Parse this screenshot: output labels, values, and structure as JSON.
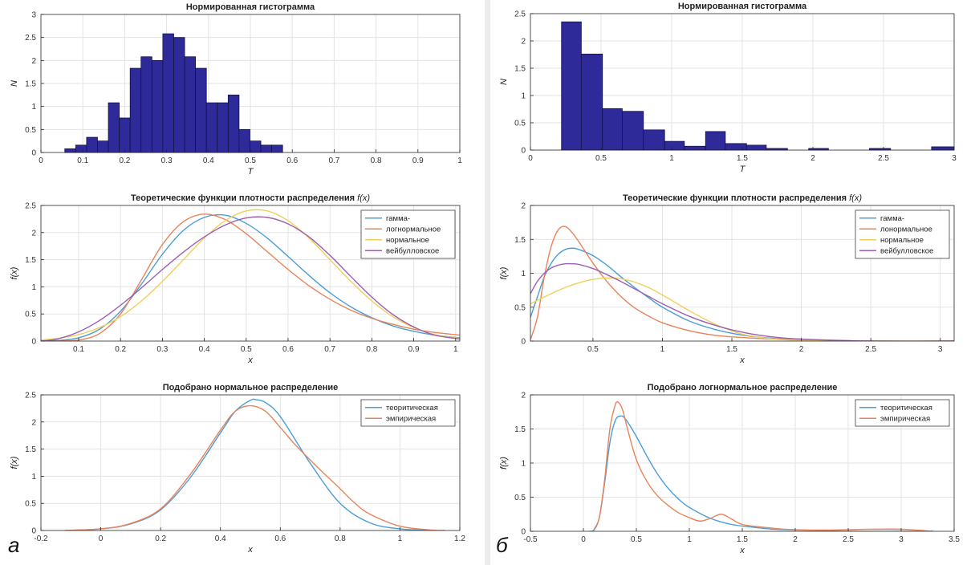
{
  "panel_labels": [
    "а",
    "б"
  ],
  "colors": {
    "bar_fill": "#2e2a9a",
    "gamma": "#4a9ed8",
    "lognormal": "#e8835a",
    "normal": "#f0cf5a",
    "weibull": "#9b5fb3",
    "theoretical": "#4a9ed8",
    "empirical": "#e8835a"
  },
  "chart_data": [
    {
      "type": "bar",
      "panel": "а",
      "title": "Нормированная гистограмма",
      "xlabel": "T",
      "ylabel": "N",
      "xlim": [
        0,
        1
      ],
      "ylim": [
        0,
        3
      ],
      "xticks": [
        0,
        0.1,
        0.2,
        0.3,
        0.4,
        0.5,
        0.6,
        0.7,
        0.8,
        0.9,
        1
      ],
      "yticks": [
        0,
        0.5,
        1,
        1.5,
        2,
        2.5,
        3
      ],
      "grid": true,
      "bin_edges": [
        0.057,
        0.082,
        0.109,
        0.135,
        0.161,
        0.187,
        0.213,
        0.239,
        0.266,
        0.292,
        0.318,
        0.345,
        0.371,
        0.397,
        0.423,
        0.449,
        0.475,
        0.502,
        0.528,
        0.554,
        0.58,
        0.606,
        0.632,
        0.658,
        0.685,
        0.711,
        0.737,
        0.763,
        0.789,
        0.816,
        0.842,
        0.868,
        0.894,
        0.92,
        0.946,
        0.972
      ],
      "bin_edges_note": "",
      "bars": [
        {
          "x0": 0.057,
          "x1": 0.083,
          "value": 0.08
        },
        {
          "x0": 0.083,
          "x1": 0.109,
          "value": 0.16
        },
        {
          "x0": 0.109,
          "x1": 0.135,
          "value": 0.33
        },
        {
          "x0": 0.135,
          "x1": 0.161,
          "value": 0.25
        },
        {
          "x0": 0.161,
          "x1": 0.187,
          "value": 1.08
        },
        {
          "x0": 0.187,
          "x1": 0.213,
          "value": 0.75
        },
        {
          "x0": 0.213,
          "x1": 0.239,
          "value": 1.83
        },
        {
          "x0": 0.239,
          "x1": 0.265,
          "value": 2.08
        },
        {
          "x0": 0.265,
          "x1": 0.291,
          "value": 2.0
        },
        {
          "x0": 0.291,
          "x1": 0.317,
          "value": 2.58
        },
        {
          "x0": 0.317,
          "x1": 0.343,
          "value": 2.5
        },
        {
          "x0": 0.343,
          "x1": 0.369,
          "value": 2.08
        },
        {
          "x0": 0.369,
          "x1": 0.395,
          "value": 1.83
        },
        {
          "x0": 0.395,
          "x1": 0.421,
          "value": 1.08
        },
        {
          "x0": 0.421,
          "x1": 0.447,
          "value": 1.08
        },
        {
          "x0": 0.447,
          "x1": 0.473,
          "value": 1.25
        },
        {
          "x0": 0.473,
          "x1": 0.499,
          "value": 0.5
        },
        {
          "x0": 0.499,
          "x1": 0.525,
          "value": 0.25
        },
        {
          "x0": 0.525,
          "x1": 0.551,
          "value": 0.16
        },
        {
          "x0": 0.551,
          "x1": 0.577,
          "value": 0.16
        }
      ]
    },
    {
      "type": "line",
      "panel": "а",
      "title": "Теоретические функции плотности распределения",
      "title_math": "f(x)",
      "xlabel": "x",
      "ylabel": "f(x)",
      "xlim": [
        0.01,
        1.01
      ],
      "ylim": [
        0,
        2.5
      ],
      "xticks": [
        0.1,
        0.2,
        0.3,
        0.4,
        0.5,
        0.6,
        0.7,
        0.8,
        0.9,
        1
      ],
      "yticks": [
        0,
        0.5,
        1,
        1.5,
        2,
        2.5
      ],
      "grid": true,
      "legend": "top-right",
      "series": [
        {
          "name": "гамма-",
          "color_key": "gamma",
          "x": [
            0.01,
            0.05,
            0.1,
            0.15,
            0.2,
            0.25,
            0.3,
            0.35,
            0.4,
            0.45,
            0.5,
            0.55,
            0.6,
            0.65,
            0.7,
            0.75,
            0.8,
            0.85,
            0.9,
            0.95,
            1.01
          ],
          "y": [
            0.0,
            0.01,
            0.06,
            0.22,
            0.55,
            1.05,
            1.6,
            2.04,
            2.28,
            2.32,
            2.17,
            1.9,
            1.56,
            1.21,
            0.89,
            0.63,
            0.43,
            0.28,
            0.18,
            0.11,
            0.06
          ]
        },
        {
          "name": "логнормальное",
          "color_key": "lognormal",
          "x": [
            0.01,
            0.05,
            0.1,
            0.15,
            0.2,
            0.25,
            0.3,
            0.35,
            0.4,
            0.45,
            0.5,
            0.55,
            0.6,
            0.65,
            0.7,
            0.75,
            0.8,
            0.85,
            0.9,
            0.95,
            1.01
          ],
          "y": [
            0.0,
            0.0,
            0.02,
            0.14,
            0.5,
            1.13,
            1.78,
            2.2,
            2.34,
            2.24,
            1.98,
            1.65,
            1.32,
            1.02,
            0.77,
            0.57,
            0.42,
            0.31,
            0.22,
            0.16,
            0.11
          ]
        },
        {
          "name": "нормальное",
          "color_key": "normal",
          "x": [
            0.01,
            0.05,
            0.1,
            0.15,
            0.2,
            0.25,
            0.3,
            0.35,
            0.4,
            0.45,
            0.5,
            0.55,
            0.6,
            0.65,
            0.7,
            0.75,
            0.8,
            0.85,
            0.9,
            0.95,
            1.01
          ],
          "y": [
            0.02,
            0.05,
            0.12,
            0.25,
            0.45,
            0.74,
            1.1,
            1.5,
            1.9,
            2.22,
            2.4,
            2.4,
            2.22,
            1.9,
            1.5,
            1.1,
            0.74,
            0.45,
            0.25,
            0.12,
            0.05
          ]
        },
        {
          "name": "вейбулловское",
          "color_key": "weibull",
          "x": [
            0.01,
            0.05,
            0.1,
            0.15,
            0.2,
            0.25,
            0.3,
            0.35,
            0.4,
            0.45,
            0.5,
            0.55,
            0.6,
            0.65,
            0.7,
            0.75,
            0.8,
            0.85,
            0.9,
            0.95,
            1.01
          ],
          "y": [
            0.0,
            0.04,
            0.17,
            0.38,
            0.66,
            0.98,
            1.32,
            1.64,
            1.92,
            2.14,
            2.27,
            2.28,
            2.16,
            1.92,
            1.58,
            1.19,
            0.81,
            0.49,
            0.26,
            0.11,
            0.04
          ]
        }
      ]
    },
    {
      "type": "line",
      "panel": "а",
      "title": "Подобрано нормальное распределение",
      "xlabel": "x",
      "ylabel": "f(x)",
      "xlim": [
        -0.2,
        1.2
      ],
      "ylim": [
        0,
        2.5
      ],
      "xticks": [
        -0.2,
        0,
        0.2,
        0.4,
        0.6,
        0.8,
        1,
        1.2
      ],
      "yticks": [
        0,
        0.5,
        1,
        1.5,
        2,
        2.5
      ],
      "grid": true,
      "legend": "top-right",
      "series": [
        {
          "name": "теоритическая",
          "color_key": "theoretical",
          "x": [
            -0.12,
            0.0,
            0.1,
            0.2,
            0.3,
            0.4,
            0.45,
            0.5,
            0.52,
            0.55,
            0.6,
            0.7,
            0.8,
            0.9,
            1.0,
            1.1,
            1.15
          ],
          "y": [
            0.0,
            0.03,
            0.12,
            0.38,
            0.98,
            1.8,
            2.2,
            2.4,
            2.41,
            2.36,
            2.1,
            1.24,
            0.5,
            0.14,
            0.03,
            0.0,
            0.0
          ]
        },
        {
          "name": "эмпирическая",
          "color_key": "empirical",
          "x": [
            -0.12,
            0.0,
            0.1,
            0.2,
            0.3,
            0.4,
            0.45,
            0.5,
            0.55,
            0.6,
            0.65,
            0.7,
            0.75,
            0.8,
            0.85,
            0.9,
            1.0,
            1.1,
            1.15
          ],
          "y": [
            0.0,
            0.03,
            0.13,
            0.4,
            1.04,
            1.85,
            2.2,
            2.3,
            2.2,
            1.9,
            1.58,
            1.3,
            1.03,
            0.77,
            0.5,
            0.3,
            0.08,
            0.01,
            0.0
          ]
        }
      ]
    },
    {
      "type": "bar",
      "panel": "б",
      "title": "Нормированная гистограмма",
      "xlabel": "T",
      "ylabel": "N",
      "xlim": [
        0,
        3
      ],
      "ylim": [
        0,
        2.5
      ],
      "xticks": [
        0,
        0.5,
        1,
        1.5,
        2,
        2.5,
        3
      ],
      "yticks": [
        0,
        0.5,
        1,
        1.5,
        2,
        2.5
      ],
      "grid": true,
      "bars": [
        {
          "x0": 0.22,
          "x1": 0.36,
          "value": 2.35
        },
        {
          "x0": 0.36,
          "x1": 0.51,
          "value": 1.76
        },
        {
          "x0": 0.51,
          "x1": 0.65,
          "value": 0.76
        },
        {
          "x0": 0.65,
          "x1": 0.8,
          "value": 0.71
        },
        {
          "x0": 0.8,
          "x1": 0.95,
          "value": 0.37
        },
        {
          "x0": 0.95,
          "x1": 1.09,
          "value": 0.16
        },
        {
          "x0": 1.09,
          "x1": 1.24,
          "value": 0.07
        },
        {
          "x0": 1.24,
          "x1": 1.38,
          "value": 0.34
        },
        {
          "x0": 1.38,
          "x1": 1.53,
          "value": 0.12
        },
        {
          "x0": 1.53,
          "x1": 1.67,
          "value": 0.09
        },
        {
          "x0": 1.67,
          "x1": 1.82,
          "value": 0.03
        },
        {
          "x0": 1.82,
          "x1": 1.97,
          "value": 0.0
        },
        {
          "x0": 1.97,
          "x1": 2.11,
          "value": 0.03
        },
        {
          "x0": 2.11,
          "x1": 2.26,
          "value": 0.0
        },
        {
          "x0": 2.26,
          "x1": 2.4,
          "value": 0.0
        },
        {
          "x0": 2.4,
          "x1": 2.55,
          "value": 0.03
        },
        {
          "x0": 2.55,
          "x1": 2.7,
          "value": 0.0
        },
        {
          "x0": 2.7,
          "x1": 2.84,
          "value": 0.0
        },
        {
          "x0": 2.84,
          "x1": 3.0,
          "value": 0.06
        }
      ]
    },
    {
      "type": "line",
      "panel": "б",
      "title": "Теоретические функции плотности распределения",
      "title_math": "f(x)",
      "xlabel": "x",
      "ylabel": "f(x)",
      "xlim": [
        0.05,
        3.1
      ],
      "ylim": [
        0,
        2
      ],
      "xticks": [
        0.5,
        1,
        1.5,
        2,
        2.5,
        3
      ],
      "yticks": [
        0,
        0.5,
        1,
        1.5,
        2
      ],
      "grid": true,
      "legend": "top-right",
      "series": [
        {
          "name": "гамма-",
          "color_key": "gamma",
          "x": [
            0.05,
            0.1,
            0.15,
            0.2,
            0.25,
            0.3,
            0.35,
            0.4,
            0.5,
            0.6,
            0.7,
            0.8,
            0.9,
            1.0,
            1.2,
            1.4,
            1.6,
            1.8,
            2.0,
            2.5,
            3.1
          ],
          "y": [
            0.35,
            0.65,
            0.95,
            1.15,
            1.28,
            1.35,
            1.37,
            1.35,
            1.26,
            1.12,
            0.95,
            0.79,
            0.64,
            0.5,
            0.29,
            0.16,
            0.08,
            0.04,
            0.02,
            0.0,
            0.0
          ]
        },
        {
          "name": "лонормальное",
          "color_key": "lognormal",
          "x": [
            0.05,
            0.1,
            0.15,
            0.2,
            0.25,
            0.3,
            0.35,
            0.4,
            0.5,
            0.6,
            0.7,
            0.8,
            0.9,
            1.0,
            1.2,
            1.4,
            1.6,
            1.8,
            2.0,
            2.5,
            3.1
          ],
          "y": [
            0.02,
            0.35,
            0.95,
            1.4,
            1.64,
            1.69,
            1.6,
            1.46,
            1.15,
            0.88,
            0.66,
            0.49,
            0.37,
            0.27,
            0.15,
            0.08,
            0.05,
            0.03,
            0.02,
            0.0,
            0.0
          ]
        },
        {
          "name": "нормальное",
          "color_key": "normal",
          "x": [
            0.05,
            0.1,
            0.2,
            0.3,
            0.4,
            0.5,
            0.6,
            0.7,
            0.8,
            0.9,
            1.0,
            1.1,
            1.2,
            1.3,
            1.4,
            1.5,
            1.6,
            1.8,
            2.0,
            2.5,
            3.1
          ],
          "y": [
            0.55,
            0.6,
            0.7,
            0.79,
            0.86,
            0.91,
            0.93,
            0.92,
            0.87,
            0.79,
            0.68,
            0.56,
            0.44,
            0.33,
            0.23,
            0.15,
            0.09,
            0.03,
            0.01,
            0.0,
            0.0
          ]
        },
        {
          "name": "вейбулловское",
          "color_key": "weibull",
          "x": [
            0.05,
            0.1,
            0.15,
            0.2,
            0.25,
            0.3,
            0.35,
            0.4,
            0.5,
            0.6,
            0.7,
            0.8,
            0.9,
            1.0,
            1.2,
            1.4,
            1.6,
            1.8,
            2.0,
            2.5,
            3.1
          ],
          "y": [
            0.7,
            0.88,
            1.0,
            1.08,
            1.12,
            1.14,
            1.14,
            1.13,
            1.07,
            0.98,
            0.88,
            0.77,
            0.66,
            0.55,
            0.36,
            0.22,
            0.12,
            0.06,
            0.03,
            0.0,
            0.0
          ]
        }
      ]
    },
    {
      "type": "line",
      "panel": "б",
      "title": "Подобрано логнормальное распределение",
      "xlabel": "x",
      "ylabel": "f(x)",
      "xlim": [
        -0.5,
        3.5
      ],
      "ylim": [
        0,
        2
      ],
      "xticks": [
        -0.5,
        0,
        0.5,
        1,
        1.5,
        2,
        2.5,
        3,
        3.5
      ],
      "yticks": [
        0,
        0.5,
        1,
        1.5,
        2
      ],
      "grid": true,
      "legend": "top-right",
      "series": [
        {
          "name": "теоритическая",
          "color_key": "theoretical",
          "x": [
            0.05,
            0.1,
            0.15,
            0.2,
            0.25,
            0.3,
            0.35,
            0.4,
            0.5,
            0.6,
            0.7,
            0.8,
            0.9,
            1.0,
            1.2,
            1.4,
            1.6,
            1.8,
            2.0,
            2.5,
            3.0,
            3.3
          ],
          "y": [
            0.0,
            0.02,
            0.2,
            0.7,
            1.3,
            1.62,
            1.69,
            1.64,
            1.39,
            1.1,
            0.84,
            0.63,
            0.47,
            0.35,
            0.19,
            0.1,
            0.06,
            0.03,
            0.02,
            0.0,
            0.0,
            0.0
          ]
        },
        {
          "name": "эмпирическая",
          "color_key": "empirical",
          "x": [
            0.1,
            0.15,
            0.2,
            0.25,
            0.3,
            0.33,
            0.37,
            0.42,
            0.5,
            0.6,
            0.7,
            0.8,
            0.9,
            1.0,
            1.1,
            1.2,
            1.3,
            1.4,
            1.5,
            1.7,
            1.9,
            2.1,
            2.4,
            2.7,
            3.0,
            3.3
          ],
          "y": [
            0.03,
            0.2,
            0.75,
            1.5,
            1.85,
            1.89,
            1.78,
            1.48,
            1.05,
            0.73,
            0.52,
            0.38,
            0.27,
            0.2,
            0.15,
            0.19,
            0.25,
            0.18,
            0.1,
            0.06,
            0.03,
            0.02,
            0.02,
            0.03,
            0.03,
            0.0
          ]
        }
      ]
    }
  ]
}
